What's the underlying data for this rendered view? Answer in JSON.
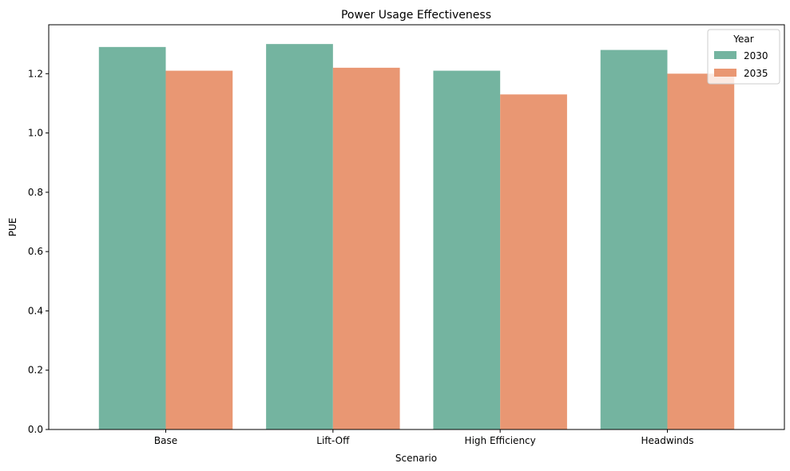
{
  "chart_data": {
    "type": "bar",
    "title": "Power Usage Effectiveness",
    "xlabel": "Scenario",
    "ylabel": "PUE",
    "categories": [
      "Base",
      "Lift-Off",
      "High Efficiency",
      "Headwinds"
    ],
    "series": [
      {
        "name": "2030",
        "values": [
          1.29,
          1.3,
          1.21,
          1.28
        ],
        "color": "#74b4a0"
      },
      {
        "name": "2035",
        "values": [
          1.21,
          1.22,
          1.13,
          1.2
        ],
        "color": "#e99773"
      }
    ],
    "ylim": [
      0,
      1.365
    ],
    "yticks": [
      "0.0",
      "0.2",
      "0.4",
      "0.6",
      "0.8",
      "1.0",
      "1.2"
    ],
    "legend": {
      "title": "Year",
      "placement": "top-right"
    },
    "grid": false
  }
}
